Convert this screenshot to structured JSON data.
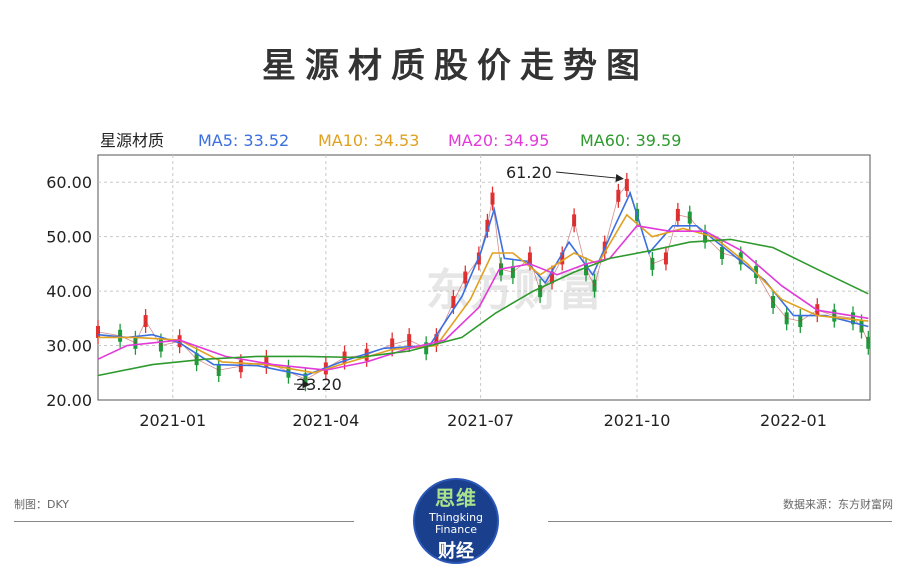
{
  "page": {
    "title": "星源材质股价走势图",
    "maker_label": "制图：DKY",
    "source_label": "数据来源：东方财富网",
    "logo": {
      "cn_top": "思维",
      "en_line1": "Thingking",
      "en_line2": "Finance",
      "cn_bottom": "财经"
    }
  },
  "chart_data": {
    "type": "line",
    "stock_name": "星源材质",
    "legend": [
      {
        "label": "MA5: 33.52",
        "color": "#3b6fe0"
      },
      {
        "label": "MA10: 34.53",
        "color": "#e0a020"
      },
      {
        "label": "MA20: 34.95",
        "color": "#e23ad8"
      },
      {
        "label": "MA60: 39.59",
        "color": "#2e9a2e"
      }
    ],
    "watermark": "东方财富",
    "ylim": [
      20,
      65
    ],
    "yticks": [
      20,
      30,
      40,
      50,
      60
    ],
    "ytick_labels": [
      "20.00",
      "30.00",
      "40.00",
      "50.00",
      "60.00"
    ],
    "xlim": [
      "2020-11-18",
      "2022-02-15"
    ],
    "xticks": [
      {
        "date": "2021-01-01",
        "label": "2021-01"
      },
      {
        "date": "2021-04-01",
        "label": "2021-04"
      },
      {
        "date": "2021-07-01",
        "label": "2021-07"
      },
      {
        "date": "2021-10-01",
        "label": "2021-10"
      },
      {
        "date": "2022-01-01",
        "label": "2022-01"
      }
    ],
    "grid": true,
    "price_series": [
      [
        "2020-11-18",
        32.5
      ],
      [
        "2020-12-01",
        31.8
      ],
      [
        "2020-12-10",
        30.5
      ],
      [
        "2020-12-16",
        34.5
      ],
      [
        "2020-12-25",
        30.0
      ],
      [
        "2021-01-05",
        30.8
      ],
      [
        "2021-01-15",
        27.5
      ],
      [
        "2021-01-28",
        25.5
      ],
      [
        "2021-02-10",
        26.2
      ],
      [
        "2021-02-25",
        27.0
      ],
      [
        "2021-03-10",
        25.2
      ],
      [
        "2021-03-20",
        23.8
      ],
      [
        "2021-04-01",
        25.8
      ],
      [
        "2021-04-12",
        27.8
      ],
      [
        "2021-04-25",
        28.3
      ],
      [
        "2021-05-10",
        30.2
      ],
      [
        "2021-05-20",
        31.0
      ],
      [
        "2021-05-30",
        29.5
      ],
      [
        "2021-06-05",
        31.0
      ],
      [
        "2021-06-15",
        38.0
      ],
      [
        "2021-06-22",
        42.5
      ],
      [
        "2021-06-30",
        46.0
      ],
      [
        "2021-07-05",
        52.0
      ],
      [
        "2021-07-08",
        57.0
      ],
      [
        "2021-07-13",
        44.0
      ],
      [
        "2021-07-20",
        43.5
      ],
      [
        "2021-07-30",
        46.0
      ],
      [
        "2021-08-05",
        40.0
      ],
      [
        "2021-08-12",
        42.5
      ],
      [
        "2021-08-18",
        46.0
      ],
      [
        "2021-08-25",
        53.0
      ],
      [
        "2021-09-01",
        44.0
      ],
      [
        "2021-09-06",
        41.0
      ],
      [
        "2021-09-12",
        48.0
      ],
      [
        "2021-09-20",
        57.5
      ],
      [
        "2021-09-25",
        59.5
      ],
      [
        "2021-10-01",
        54.0
      ],
      [
        "2021-10-10",
        45.0
      ],
      [
        "2021-10-18",
        46.0
      ],
      [
        "2021-10-25",
        54.0
      ],
      [
        "2021-11-01",
        53.5
      ],
      [
        "2021-11-10",
        50.0
      ],
      [
        "2021-11-20",
        47.0
      ],
      [
        "2021-12-01",
        46.0
      ],
      [
        "2021-12-10",
        43.5
      ],
      [
        "2021-12-20",
        38.0
      ],
      [
        "2021-12-28",
        35.0
      ],
      [
        "2022-01-05",
        34.5
      ],
      [
        "2022-01-15",
        36.5
      ],
      [
        "2022-01-25",
        35.5
      ],
      [
        "2022-02-05",
        35.0
      ],
      [
        "2022-02-10",
        33.5
      ],
      [
        "2022-02-14",
        30.5
      ]
    ],
    "series": [
      {
        "name": "MA5",
        "color": "#3b6fe0",
        "points": [
          [
            "2020-11-18",
            32.0
          ],
          [
            "2020-12-05",
            31.5
          ],
          [
            "2020-12-20",
            32.0
          ],
          [
            "2021-01-05",
            30.5
          ],
          [
            "2021-01-25",
            26.5
          ],
          [
            "2021-02-20",
            26.3
          ],
          [
            "2021-03-20",
            24.5
          ],
          [
            "2021-04-10",
            27.0
          ],
          [
            "2021-05-05",
            29.5
          ],
          [
            "2021-06-01",
            30.0
          ],
          [
            "2021-06-20",
            39.0
          ],
          [
            "2021-07-01",
            47.0
          ],
          [
            "2021-07-09",
            55.0
          ],
          [
            "2021-07-15",
            46.0
          ],
          [
            "2021-07-28",
            45.5
          ],
          [
            "2021-08-08",
            41.5
          ],
          [
            "2021-08-22",
            49.0
          ],
          [
            "2021-09-05",
            43.0
          ],
          [
            "2021-09-18",
            52.0
          ],
          [
            "2021-09-27",
            58.0
          ],
          [
            "2021-10-08",
            47.0
          ],
          [
            "2021-10-22",
            52.0
          ],
          [
            "2021-11-05",
            52.0
          ],
          [
            "2021-11-25",
            47.0
          ],
          [
            "2021-12-15",
            42.0
          ],
          [
            "2022-01-01",
            35.5
          ],
          [
            "2022-01-20",
            35.5
          ],
          [
            "2022-02-14",
            33.5
          ]
        ]
      },
      {
        "name": "MA10",
        "color": "#e0a020",
        "points": [
          [
            "2020-11-18",
            31.5
          ],
          [
            "2020-12-10",
            31.5
          ],
          [
            "2021-01-05",
            31.0
          ],
          [
            "2021-01-30",
            27.0
          ],
          [
            "2021-02-25",
            26.5
          ],
          [
            "2021-03-25",
            25.0
          ],
          [
            "2021-04-15",
            27.0
          ],
          [
            "2021-05-10",
            29.3
          ],
          [
            "2021-06-05",
            30.0
          ],
          [
            "2021-06-25",
            38.5
          ],
          [
            "2021-07-08",
            47.0
          ],
          [
            "2021-07-20",
            47.0
          ],
          [
            "2021-08-05",
            43.0
          ],
          [
            "2021-08-25",
            47.0
          ],
          [
            "2021-09-08",
            45.0
          ],
          [
            "2021-09-25",
            54.0
          ],
          [
            "2021-10-10",
            50.0
          ],
          [
            "2021-10-28",
            51.5
          ],
          [
            "2021-11-15",
            50.0
          ],
          [
            "2021-12-05",
            45.0
          ],
          [
            "2021-12-25",
            38.5
          ],
          [
            "2022-01-15",
            35.5
          ],
          [
            "2022-02-14",
            34.5
          ]
        ]
      },
      {
        "name": "MA20",
        "color": "#e23ad8",
        "points": [
          [
            "2020-11-18",
            27.5
          ],
          [
            "2020-12-05",
            30.0
          ],
          [
            "2021-01-05",
            31.0
          ],
          [
            "2021-02-01",
            28.0
          ],
          [
            "2021-03-01",
            26.5
          ],
          [
            "2021-04-01",
            25.5
          ],
          [
            "2021-04-25",
            27.0
          ],
          [
            "2021-05-20",
            29.5
          ],
          [
            "2021-06-10",
            31.0
          ],
          [
            "2021-06-30",
            37.0
          ],
          [
            "2021-07-12",
            44.0
          ],
          [
            "2021-07-30",
            45.0
          ],
          [
            "2021-08-15",
            43.0
          ],
          [
            "2021-09-01",
            45.0
          ],
          [
            "2021-09-15",
            46.0
          ],
          [
            "2021-10-01",
            52.0
          ],
          [
            "2021-10-20",
            51.0
          ],
          [
            "2021-11-10",
            51.0
          ],
          [
            "2021-12-01",
            47.5
          ],
          [
            "2021-12-25",
            41.0
          ],
          [
            "2022-01-15",
            36.5
          ],
          [
            "2022-02-14",
            35.0
          ]
        ]
      },
      {
        "name": "MA60",
        "color": "#2e9a2e",
        "points": [
          [
            "2020-11-18",
            24.5
          ],
          [
            "2020-12-20",
            26.5
          ],
          [
            "2021-01-20",
            27.5
          ],
          [
            "2021-02-20",
            28.0
          ],
          [
            "2021-03-20",
            28.0
          ],
          [
            "2021-04-20",
            27.8
          ],
          [
            "2021-05-20",
            29.0
          ],
          [
            "2021-06-20",
            31.5
          ],
          [
            "2021-07-10",
            36.0
          ],
          [
            "2021-08-01",
            40.0
          ],
          [
            "2021-08-25",
            43.5
          ],
          [
            "2021-09-15",
            46.0
          ],
          [
            "2021-10-10",
            47.5
          ],
          [
            "2021-11-01",
            49.0
          ],
          [
            "2021-11-25",
            49.5
          ],
          [
            "2021-12-20",
            48.0
          ],
          [
            "2022-01-15",
            44.0
          ],
          [
            "2022-02-14",
            39.5
          ]
        ]
      }
    ],
    "annotations": [
      {
        "label": "61.20",
        "date": "2021-09-25",
        "value": 61.2
      },
      {
        "label": "23.20",
        "date": "2021-03-20",
        "value": 23.2
      }
    ]
  }
}
